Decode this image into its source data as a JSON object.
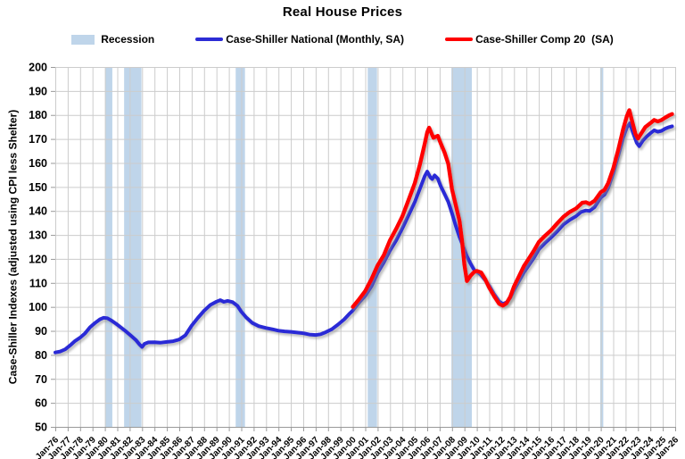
{
  "title": "Real House Prices",
  "legend": {
    "recession_label": "Recession",
    "national_label": "Case-Shiller National (Monthly, SA)",
    "comp20_label": "Case-Shiller Comp 20  (SA)"
  },
  "colors": {
    "national": "#2c2cd6",
    "comp20": "#ff0000",
    "recession": "#bfd5ea",
    "grid": "#cccccc",
    "axis": "#999999",
    "text": "#000000"
  },
  "chart_data": {
    "type": "line",
    "title": "Real House Prices",
    "xlabel": "",
    "ylabel": "Case-Shiller Indexes (adjusted using CPI less Shelter)",
    "ylim": [
      50,
      200
    ],
    "yticks": [
      50,
      60,
      70,
      80,
      90,
      100,
      110,
      120,
      130,
      140,
      150,
      160,
      170,
      180,
      190,
      200
    ],
    "xlim": [
      1976,
      2026
    ],
    "xtick_labels": [
      "Jan-76",
      "Jan-77",
      "Jan-78",
      "Jan-79",
      "Jan-80",
      "Jan-81",
      "Jan-82",
      "Jan-83",
      "Jan-84",
      "Jan-85",
      "Jan-86",
      "Jan-87",
      "Jan-88",
      "Jan-89",
      "Jan-90",
      "Jan-91",
      "Jan-92",
      "Jan-93",
      "Jan-94",
      "Jan-95",
      "Jan-96",
      "Jan-97",
      "Jan-98",
      "Jan-99",
      "Jan-00",
      "Jan-01",
      "Jan-02",
      "Jan-03",
      "Jan-04",
      "Jan-05",
      "Jan-06",
      "Jan-07",
      "Jan-08",
      "Jan-09",
      "Jan-10",
      "Jan-11",
      "Jan-12",
      "Jan-13",
      "Jan-14",
      "Jan-15",
      "Jan-16",
      "Jan-17",
      "Jan-18",
      "Jan-19",
      "Jan-20",
      "Jan-21",
      "Jan-22",
      "Jan-23",
      "Jan-24",
      "Jan-25",
      "Jan-26"
    ],
    "grid": true,
    "legend_position": "top",
    "recession_bands": [
      [
        1980.05,
        1980.6
      ],
      [
        1981.55,
        1982.95
      ],
      [
        1990.55,
        1991.3
      ],
      [
        2001.2,
        2001.95
      ],
      [
        2007.95,
        2009.6
      ],
      [
        2019.95,
        2020.2
      ]
    ],
    "series": [
      {
        "name": "Case-Shiller National (Monthly, SA)",
        "color": "#2c2cd6",
        "points": [
          [
            1976.0,
            81
          ],
          [
            1976.4,
            81.4
          ],
          [
            1976.8,
            82.3
          ],
          [
            1977.2,
            84
          ],
          [
            1977.6,
            85.8
          ],
          [
            1978.0,
            87.2
          ],
          [
            1978.4,
            89
          ],
          [
            1978.8,
            91.5
          ],
          [
            1979.2,
            93.3
          ],
          [
            1979.6,
            94.8
          ],
          [
            1979.9,
            95.5
          ],
          [
            1980.2,
            95.3
          ],
          [
            1980.5,
            94.4
          ],
          [
            1980.9,
            93
          ],
          [
            1981.3,
            91.4
          ],
          [
            1981.7,
            89.8
          ],
          [
            1982.1,
            88
          ],
          [
            1982.5,
            86.2
          ],
          [
            1982.8,
            84.3
          ],
          [
            1983.0,
            83.3
          ],
          [
            1983.2,
            84.6
          ],
          [
            1983.5,
            85.2
          ],
          [
            1984.0,
            85.3
          ],
          [
            1984.5,
            85.1
          ],
          [
            1985.0,
            85.4
          ],
          [
            1985.5,
            85.7
          ],
          [
            1986.0,
            86.4
          ],
          [
            1986.5,
            88.2
          ],
          [
            1987.0,
            92.2
          ],
          [
            1987.5,
            95.4
          ],
          [
            1988.0,
            98.4
          ],
          [
            1988.5,
            100.8
          ],
          [
            1989.0,
            102.2
          ],
          [
            1989.3,
            102.8
          ],
          [
            1989.6,
            102.1
          ],
          [
            1989.9,
            102.5
          ],
          [
            1990.3,
            102
          ],
          [
            1990.7,
            100.4
          ],
          [
            1991.0,
            98
          ],
          [
            1991.4,
            95.6
          ],
          [
            1991.9,
            93.3
          ],
          [
            1992.4,
            92
          ],
          [
            1993.0,
            91.2
          ],
          [
            1993.5,
            90.7
          ],
          [
            1994.0,
            90.1
          ],
          [
            1994.5,
            89.8
          ],
          [
            1995.0,
            89.6
          ],
          [
            1995.5,
            89.3
          ],
          [
            1996.0,
            89
          ],
          [
            1996.5,
            88.5
          ],
          [
            1997.0,
            88.3
          ],
          [
            1997.4,
            88.6
          ],
          [
            1997.8,
            89.4
          ],
          [
            1998.3,
            90.7
          ],
          [
            1998.8,
            92.6
          ],
          [
            1999.3,
            94.8
          ],
          [
            1999.7,
            97
          ],
          [
            2000.0,
            98.5
          ],
          [
            2000.5,
            101.8
          ],
          [
            2001.0,
            104.6
          ],
          [
            2001.5,
            108.6
          ],
          [
            2002.0,
            114.2
          ],
          [
            2002.5,
            118.6
          ],
          [
            2003.0,
            123.5
          ],
          [
            2003.5,
            127.8
          ],
          [
            2004.0,
            132.8
          ],
          [
            2004.5,
            138.2
          ],
          [
            2005.0,
            143.8
          ],
          [
            2005.4,
            149.2
          ],
          [
            2005.8,
            154.5
          ],
          [
            2006.0,
            156.4
          ],
          [
            2006.25,
            154
          ],
          [
            2006.4,
            153.3
          ],
          [
            2006.6,
            154.8
          ],
          [
            2006.85,
            153.5
          ],
          [
            2007.1,
            150.2
          ],
          [
            2007.4,
            147
          ],
          [
            2007.7,
            143.8
          ],
          [
            2008.0,
            139
          ],
          [
            2008.3,
            133.8
          ],
          [
            2008.6,
            129.2
          ],
          [
            2009.0,
            123.8
          ],
          [
            2009.2,
            121
          ],
          [
            2009.5,
            118
          ],
          [
            2009.8,
            115.3
          ],
          [
            2010.0,
            114.6
          ],
          [
            2010.3,
            113.5
          ],
          [
            2010.7,
            111
          ],
          [
            2011.0,
            108.8
          ],
          [
            2011.4,
            105.2
          ],
          [
            2011.8,
            102.3
          ],
          [
            2012.1,
            101.2
          ],
          [
            2012.4,
            101.9
          ],
          [
            2012.7,
            103.8
          ],
          [
            2013.0,
            107
          ],
          [
            2013.4,
            110.8
          ],
          [
            2013.8,
            114.4
          ],
          [
            2014.2,
            117.4
          ],
          [
            2014.6,
            120.4
          ],
          [
            2015.0,
            124
          ],
          [
            2015.5,
            126.6
          ],
          [
            2016.0,
            129
          ],
          [
            2016.5,
            131.6
          ],
          [
            2017.0,
            134.4
          ],
          [
            2017.5,
            136.3
          ],
          [
            2018.0,
            137.8
          ],
          [
            2018.4,
            139.6
          ],
          [
            2018.8,
            140.2
          ],
          [
            2019.1,
            140
          ],
          [
            2019.5,
            141.6
          ],
          [
            2020.0,
            145.6
          ],
          [
            2020.3,
            146.8
          ],
          [
            2020.6,
            149.6
          ],
          [
            2021.0,
            155.6
          ],
          [
            2021.4,
            163
          ],
          [
            2021.8,
            170.5
          ],
          [
            2022.1,
            174.8
          ],
          [
            2022.35,
            176.6
          ],
          [
            2022.6,
            172.6
          ],
          [
            2022.9,
            168.4
          ],
          [
            2023.1,
            167
          ],
          [
            2023.4,
            169.4
          ],
          [
            2023.7,
            171
          ],
          [
            2024.0,
            172.4
          ],
          [
            2024.3,
            173.6
          ],
          [
            2024.6,
            173
          ],
          [
            2024.9,
            173.4
          ],
          [
            2025.2,
            174.3
          ],
          [
            2025.5,
            174.9
          ],
          [
            2025.75,
            175.3
          ]
        ]
      },
      {
        "name": "Case-Shiller Comp 20  (SA)",
        "color": "#ff0000",
        "points": [
          [
            2000.0,
            100
          ],
          [
            2000.5,
            103.2
          ],
          [
            2001.0,
            106.6
          ],
          [
            2001.5,
            111.5
          ],
          [
            2002.0,
            117.3
          ],
          [
            2002.5,
            121.6
          ],
          [
            2003.0,
            127.8
          ],
          [
            2003.5,
            132.6
          ],
          [
            2004.0,
            137.8
          ],
          [
            2004.5,
            144.6
          ],
          [
            2005.0,
            151.6
          ],
          [
            2005.4,
            159.2
          ],
          [
            2005.8,
            168
          ],
          [
            2006.0,
            172.8
          ],
          [
            2006.15,
            174.7
          ],
          [
            2006.5,
            170.5
          ],
          [
            2006.85,
            171.3
          ],
          [
            2007.1,
            168
          ],
          [
            2007.4,
            164.3
          ],
          [
            2007.7,
            159.6
          ],
          [
            2008.0,
            149
          ],
          [
            2008.3,
            142.4
          ],
          [
            2008.6,
            136
          ],
          [
            2008.8,
            128
          ],
          [
            2009.0,
            117.5
          ],
          [
            2009.2,
            110.8
          ],
          [
            2009.5,
            113
          ],
          [
            2009.8,
            114.6
          ],
          [
            2010.0,
            115
          ],
          [
            2010.35,
            114.3
          ],
          [
            2010.7,
            111.3
          ],
          [
            2011.0,
            108
          ],
          [
            2011.4,
            104.4
          ],
          [
            2011.8,
            101.3
          ],
          [
            2012.1,
            100.5
          ],
          [
            2012.4,
            101.6
          ],
          [
            2012.7,
            104.2
          ],
          [
            2013.0,
            108.5
          ],
          [
            2013.4,
            112.8
          ],
          [
            2013.8,
            117
          ],
          [
            2014.2,
            120.2
          ],
          [
            2014.6,
            123.4
          ],
          [
            2015.0,
            127
          ],
          [
            2015.5,
            129.6
          ],
          [
            2016.0,
            132
          ],
          [
            2016.5,
            134.9
          ],
          [
            2017.0,
            137.6
          ],
          [
            2017.5,
            139.6
          ],
          [
            2018.0,
            141
          ],
          [
            2018.5,
            143.4
          ],
          [
            2018.8,
            143.6
          ],
          [
            2019.1,
            142.9
          ],
          [
            2019.5,
            144.2
          ],
          [
            2020.0,
            147.8
          ],
          [
            2020.3,
            148.8
          ],
          [
            2020.6,
            151.6
          ],
          [
            2021.0,
            157.6
          ],
          [
            2021.4,
            165.4
          ],
          [
            2021.8,
            174
          ],
          [
            2022.1,
            179.5
          ],
          [
            2022.3,
            182
          ],
          [
            2022.55,
            177
          ],
          [
            2022.8,
            172
          ],
          [
            2023.0,
            170.2
          ],
          [
            2023.3,
            172.6
          ],
          [
            2023.6,
            175
          ],
          [
            2024.0,
            176.6
          ],
          [
            2024.3,
            177.9
          ],
          [
            2024.6,
            177.3
          ],
          [
            2024.9,
            177.9
          ],
          [
            2025.2,
            178.9
          ],
          [
            2025.5,
            179.8
          ],
          [
            2025.75,
            180.4
          ]
        ]
      }
    ]
  }
}
